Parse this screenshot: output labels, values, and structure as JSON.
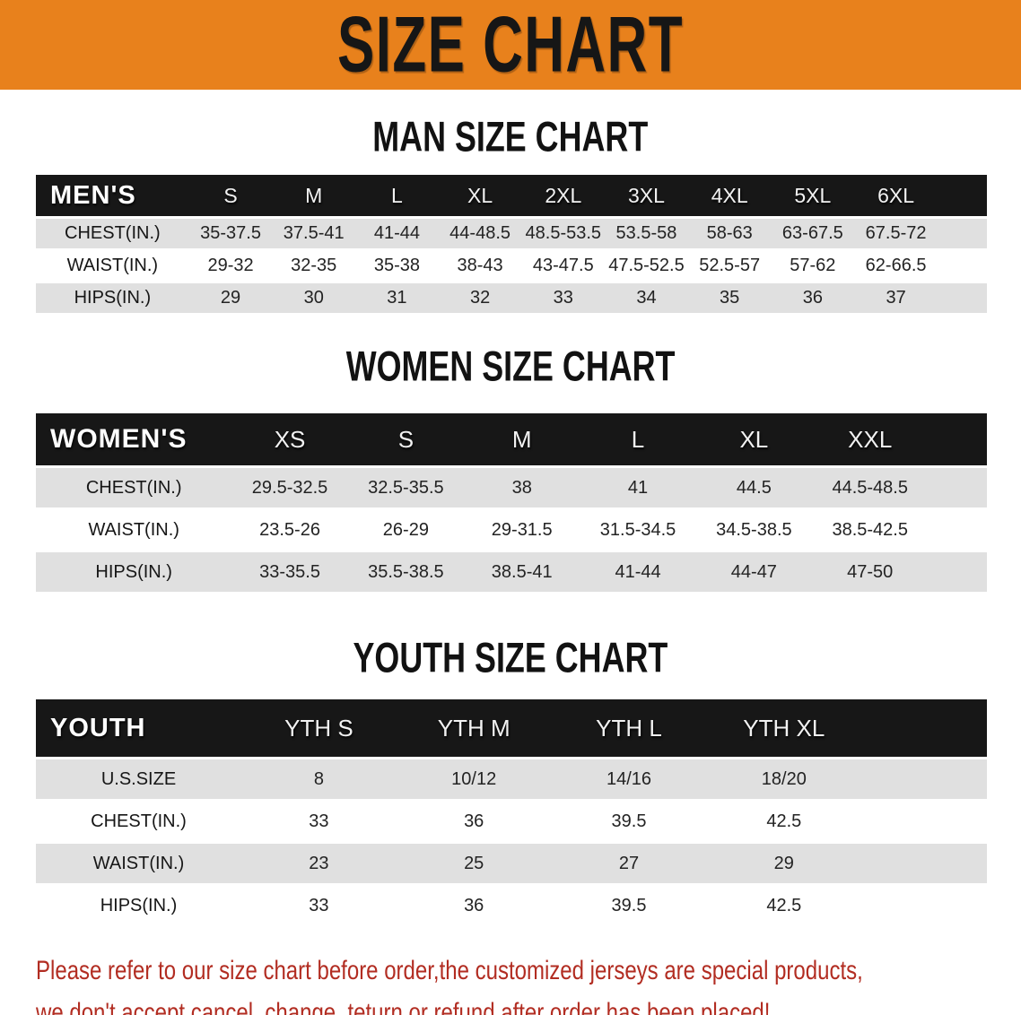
{
  "banner": {
    "title": "SIZE CHART"
  },
  "sections": {
    "men": {
      "heading": "MAN SIZE CHART",
      "table": {
        "header_label": "MEN'S",
        "columns": [
          "S",
          "M",
          "L",
          "XL",
          "2XL",
          "3XL",
          "4XL",
          "5XL",
          "6XL"
        ],
        "rows": [
          {
            "label": "CHEST(IN.)",
            "values": [
              "35-37.5",
              "37.5-41",
              "41-44",
              "44-48.5",
              "48.5-53.5",
              "53.5-58",
              "58-63",
              "63-67.5",
              "67.5-72"
            ]
          },
          {
            "label": "WAIST(IN.)",
            "values": [
              "29-32",
              "32-35",
              "35-38",
              "38-43",
              "43-47.5",
              "47.5-52.5",
              "52.5-57",
              "57-62",
              "62-66.5"
            ]
          },
          {
            "label": "HIPS(IN.)",
            "values": [
              "29",
              "30",
              "31",
              "32",
              "33",
              "34",
              "35",
              "36",
              "37"
            ]
          }
        ]
      }
    },
    "women": {
      "heading": "WOMEN SIZE CHART",
      "table": {
        "header_label": "WOMEN'S",
        "columns": [
          "XS",
          "S",
          "M",
          "L",
          "XL",
          "XXL"
        ],
        "rows": [
          {
            "label": "CHEST(IN.)",
            "values": [
              "29.5-32.5",
              "32.5-35.5",
              "38",
              "41",
              "44.5",
              "44.5-48.5"
            ]
          },
          {
            "label": "WAIST(IN.)",
            "values": [
              "23.5-26",
              "26-29",
              "29-31.5",
              "31.5-34.5",
              "34.5-38.5",
              "38.5-42.5"
            ]
          },
          {
            "label": "HIPS(IN.)",
            "values": [
              "33-35.5",
              "35.5-38.5",
              "38.5-41",
              "41-44",
              "44-47",
              "47-50"
            ]
          }
        ]
      }
    },
    "youth": {
      "heading": "YOUTH SIZE CHART",
      "table": {
        "header_label": "YOUTH",
        "columns": [
          "YTH S",
          "YTH M",
          "YTH L",
          "YTH XL"
        ],
        "rows": [
          {
            "label": "U.S.SIZE",
            "values": [
              "8",
              "10/12",
              "14/16",
              "18/20"
            ]
          },
          {
            "label": "CHEST(IN.)",
            "values": [
              "33",
              "36",
              "39.5",
              "42.5"
            ]
          },
          {
            "label": "WAIST(IN.)",
            "values": [
              "23",
              "25",
              "27",
              "29"
            ]
          },
          {
            "label": "HIPS(IN.)",
            "values": [
              "33",
              "36",
              "39.5",
              "42.5"
            ]
          }
        ]
      }
    }
  },
  "footer": {
    "line1": "Please refer to our size chart before order,the customized jerseys are special products,",
    "line2": "we don't accept cancel, change, teturn or refund after order has been placed!"
  },
  "colors": {
    "banner_bg": "#E8811C",
    "banner_text": "#161616",
    "table_header_bg": "#171717",
    "table_header_text": "#FFFFFF",
    "row_stripe": "#E0E0E0",
    "footer_text": "#B22D22"
  }
}
